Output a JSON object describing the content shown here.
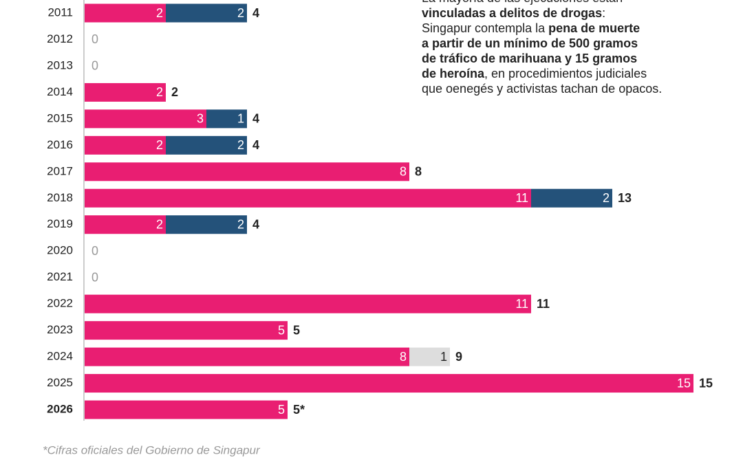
{
  "chart_data": {
    "type": "stacked-barh",
    "categories": [
      "2011",
      "2012",
      "2013",
      "2014",
      "2015",
      "2016",
      "2017",
      "2018",
      "2019",
      "2020",
      "2021",
      "2022",
      "2023",
      "2024",
      "2025",
      "2026"
    ],
    "series": [
      {
        "color": "#e91e72",
        "label_color": "#ffffff",
        "values": [
          2,
          null,
          null,
          2,
          3,
          2,
          8,
          11,
          2,
          null,
          null,
          11,
          5,
          8,
          15,
          5
        ]
      },
      {
        "color": "#24527a",
        "label_color": "#ffffff",
        "values": [
          2,
          null,
          null,
          null,
          1,
          2,
          null,
          2,
          2,
          null,
          null,
          null,
          null,
          null,
          null,
          null
        ]
      },
      {
        "color": "#dddddd",
        "label_color": "#222222",
        "values": [
          null,
          null,
          null,
          null,
          null,
          null,
          null,
          null,
          null,
          null,
          null,
          null,
          null,
          1,
          null,
          null
        ]
      }
    ],
    "total_labels": [
      "4",
      "0",
      "0",
      "2",
      "4",
      "4",
      "8",
      "13",
      "4",
      "0",
      "0",
      "11",
      "5",
      "9",
      "15",
      "5*"
    ],
    "xlim": [
      0,
      15
    ],
    "annotation_lines": [
      [
        {
          "text": "La mayoría de las ejecuciones están",
          "bold": false
        }
      ],
      [
        {
          "text": "vinculadas a delitos de drogas",
          "bold": true
        },
        {
          "text": ":",
          "bold": false
        }
      ],
      [
        {
          "text": "Singapur contempla la ",
          "bold": false
        },
        {
          "text": "pena de muerte",
          "bold": true
        }
      ],
      [
        {
          "text": "a partir de un mínimo de 500 gramos",
          "bold": true
        }
      ],
      [
        {
          "text": "de tráfico de marihuana y 15 gramos",
          "bold": true
        }
      ],
      [
        {
          "text": "de heroína",
          "bold": true
        },
        {
          "text": ", en procedimientos judiciales",
          "bold": false
        }
      ],
      [
        {
          "text": "que oenegés y activistas tachan de opacos.",
          "bold": false
        }
      ]
    ],
    "footnote": "*Cifras oficiales del Gobierno de Singapur"
  }
}
